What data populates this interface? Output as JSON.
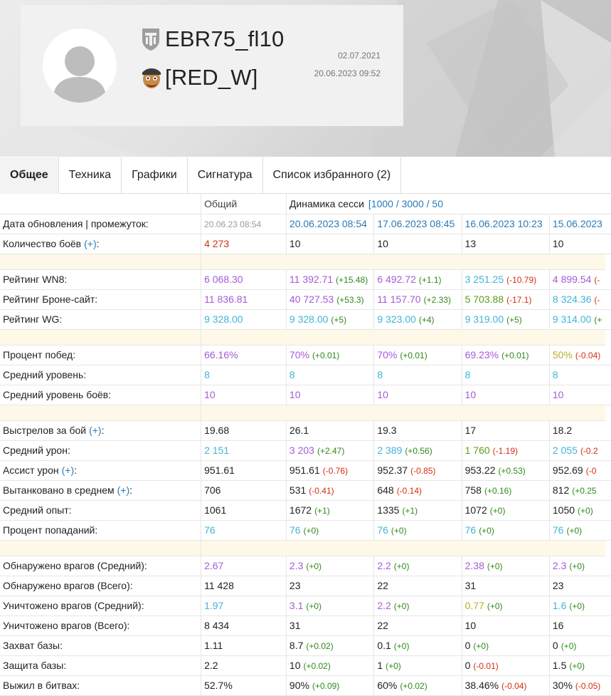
{
  "profile": {
    "nickname": "EBR75_fl10",
    "clan": "[RED_W]",
    "date_created": "02.07.2021",
    "date_updated": "20.06.2023 09:52"
  },
  "tabs": [
    {
      "label": "Общее",
      "active": true
    },
    {
      "label": "Техника"
    },
    {
      "label": "Графики"
    },
    {
      "label": "Сигнатура"
    },
    {
      "label": "Список избранного (2)"
    }
  ],
  "header": {
    "overall": "Общий",
    "session": "Динамика сесси",
    "session_links": "[1000 / 3000 / 50"
  },
  "rows": [
    {
      "label": "Дата обновления | промежуток:",
      "cells": [
        {
          "v": "20.06.23 08:54",
          "c": "gray"
        },
        {
          "v": "20.06.2023 08:54",
          "c": "blue"
        },
        {
          "v": "17.06.2023 08:45",
          "c": "blue"
        },
        {
          "v": "16.06.2023 10:23",
          "c": "blue"
        },
        {
          "v": "15.06.2023",
          "c": "blue"
        }
      ]
    },
    {
      "label": "Количество боёв",
      "plus": "(+)",
      "after": ":",
      "cells": [
        {
          "v": "4 273",
          "c": "red"
        },
        {
          "v": "10",
          "c": "black"
        },
        {
          "v": "10",
          "c": "black"
        },
        {
          "v": "13",
          "c": "black"
        },
        {
          "v": "10",
          "c": "black"
        }
      ]
    },
    {
      "sep": true
    },
    {
      "label": "Рейтинг WN8:",
      "cells": [
        {
          "v": "6 068.30",
          "c": "purple"
        },
        {
          "v": "11 392.71",
          "c": "purple",
          "d": "(+15.48)",
          "dc": "dpos"
        },
        {
          "v": "6 492.72",
          "c": "purple",
          "d": "(+1.1)",
          "dc": "dpos"
        },
        {
          "v": "3 251.25",
          "c": "cyan",
          "d": "(-10.79)",
          "dc": "dneg"
        },
        {
          "v": "4 899.54",
          "c": "purple",
          "d": "(-",
          "dc": "dneg"
        }
      ]
    },
    {
      "label": "Рейтинг Броне-сайт:",
      "cells": [
        {
          "v": "11 836.81",
          "c": "purple"
        },
        {
          "v": "40 727.53",
          "c": "purple",
          "d": "(+53.3)",
          "dc": "dpos"
        },
        {
          "v": "11 157.70",
          "c": "purple",
          "d": "(+2.33)",
          "dc": "dpos"
        },
        {
          "v": "5 703.88",
          "c": "green",
          "d": "(-17.1)",
          "dc": "dneg"
        },
        {
          "v": "8 324.36",
          "c": "cyan",
          "d": "(-",
          "dc": "dneg"
        }
      ]
    },
    {
      "label": "Рейтинг WG:",
      "cells": [
        {
          "v": "9 328.00",
          "c": "cyan"
        },
        {
          "v": "9 328.00",
          "c": "cyan",
          "d": "(+5)",
          "dc": "dpos"
        },
        {
          "v": "9 323.00",
          "c": "cyan",
          "d": "(+4)",
          "dc": "dpos"
        },
        {
          "v": "9 319.00",
          "c": "cyan",
          "d": "(+5)",
          "dc": "dpos"
        },
        {
          "v": "9 314.00",
          "c": "cyan",
          "d": "(+",
          "dc": "dpos"
        }
      ]
    },
    {
      "sep": true
    },
    {
      "label": "Процент побед:",
      "cells": [
        {
          "v": "66.16%",
          "c": "purple"
        },
        {
          "v": "70%",
          "c": "purple",
          "d": "(+0.01)",
          "dc": "dpos"
        },
        {
          "v": "70%",
          "c": "purple",
          "d": "(+0.01)",
          "dc": "dpos"
        },
        {
          "v": "69.23%",
          "c": "purple",
          "d": "(+0.01)",
          "dc": "dpos"
        },
        {
          "v": "50%",
          "c": "yellow",
          "d": "(-0.04)",
          "dc": "dneg"
        }
      ]
    },
    {
      "label": "Средний уровень:",
      "cells": [
        {
          "v": "8",
          "c": "cyan"
        },
        {
          "v": "8",
          "c": "cyan"
        },
        {
          "v": "8",
          "c": "cyan"
        },
        {
          "v": "8",
          "c": "cyan"
        },
        {
          "v": "8",
          "c": "cyan"
        }
      ]
    },
    {
      "label": "Средний уровень боёв:",
      "cells": [
        {
          "v": "10",
          "c": "purple"
        },
        {
          "v": "10",
          "c": "purple"
        },
        {
          "v": "10",
          "c": "purple"
        },
        {
          "v": "10",
          "c": "purple"
        },
        {
          "v": "10",
          "c": "purple"
        }
      ]
    },
    {
      "sep": true
    },
    {
      "label": "Выстрелов за бой",
      "plus": "(+)",
      "after": ":",
      "cells": [
        {
          "v": "19.68",
          "c": "black"
        },
        {
          "v": "26.1",
          "c": "black"
        },
        {
          "v": "19.3",
          "c": "black"
        },
        {
          "v": "17",
          "c": "black"
        },
        {
          "v": "18.2",
          "c": "black"
        }
      ]
    },
    {
      "label": "Средний урон:",
      "cells": [
        {
          "v": "2 151",
          "c": "cyan"
        },
        {
          "v": "3 203",
          "c": "purple",
          "d": "(+2.47)",
          "dc": "dpos"
        },
        {
          "v": "2 389",
          "c": "cyan",
          "d": "(+0.56)",
          "dc": "dpos"
        },
        {
          "v": "1 760",
          "c": "green",
          "d": "(-1.19)",
          "dc": "dneg"
        },
        {
          "v": "2 055",
          "c": "cyan",
          "d": "(-0.2",
          "dc": "dneg"
        }
      ]
    },
    {
      "label": "Ассист урон",
      "plus": "(+)",
      "after": ":",
      "cells": [
        {
          "v": "951.61",
          "c": "black"
        },
        {
          "v": "951.61",
          "c": "black",
          "d": "(-0.76)",
          "dc": "dneg"
        },
        {
          "v": "952.37",
          "c": "black",
          "d": "(-0.85)",
          "dc": "dneg"
        },
        {
          "v": "953.22",
          "c": "black",
          "d": "(+0.53)",
          "dc": "dpos"
        },
        {
          "v": "952.69",
          "c": "black",
          "d": "(-0",
          "dc": "dneg"
        }
      ]
    },
    {
      "label": "Вытанковано в среднем",
      "plus": "(+)",
      "after": ":",
      "cells": [
        {
          "v": "706",
          "c": "black"
        },
        {
          "v": "531",
          "c": "black",
          "d": "(-0.41)",
          "dc": "dneg"
        },
        {
          "v": "648",
          "c": "black",
          "d": "(-0.14)",
          "dc": "dneg"
        },
        {
          "v": "758",
          "c": "black",
          "d": "(+0.16)",
          "dc": "dpos"
        },
        {
          "v": "812",
          "c": "black",
          "d": "(+0.25",
          "dc": "dpos"
        }
      ]
    },
    {
      "label": "Средний опыт:",
      "cells": [
        {
          "v": "1061",
          "c": "black"
        },
        {
          "v": "1672",
          "c": "black",
          "d": "(+1)",
          "dc": "dpos"
        },
        {
          "v": "1335",
          "c": "black",
          "d": "(+1)",
          "dc": "dpos"
        },
        {
          "v": "1072",
          "c": "black",
          "d": "(+0)",
          "dc": "dpos"
        },
        {
          "v": "1050",
          "c": "black",
          "d": "(+0)",
          "dc": "dpos"
        }
      ]
    },
    {
      "label": "Процент попаданий:",
      "cells": [
        {
          "v": "76",
          "c": "cyan"
        },
        {
          "v": "76",
          "c": "cyan",
          "d": "(+0)",
          "dc": "dpos"
        },
        {
          "v": "76",
          "c": "cyan",
          "d": "(+0)",
          "dc": "dpos"
        },
        {
          "v": "76",
          "c": "cyan",
          "d": "(+0)",
          "dc": "dpos"
        },
        {
          "v": "76",
          "c": "cyan",
          "d": "(+0)",
          "dc": "dpos"
        }
      ]
    },
    {
      "sep": true
    },
    {
      "label": "Обнаружено врагов (Средний):",
      "cells": [
        {
          "v": "2.67",
          "c": "purple"
        },
        {
          "v": "2.3",
          "c": "purple",
          "d": "(+0)",
          "dc": "dpos"
        },
        {
          "v": "2.2",
          "c": "purple",
          "d": "(+0)",
          "dc": "dpos"
        },
        {
          "v": "2.38",
          "c": "purple",
          "d": "(+0)",
          "dc": "dpos"
        },
        {
          "v": "2.3",
          "c": "purple",
          "d": "(+0)",
          "dc": "dpos"
        }
      ]
    },
    {
      "label": "Обнаружено врагов (Всего):",
      "cells": [
        {
          "v": "11 428",
          "c": "black"
        },
        {
          "v": "23",
          "c": "black"
        },
        {
          "v": "22",
          "c": "black"
        },
        {
          "v": "31",
          "c": "black"
        },
        {
          "v": "23",
          "c": "black"
        }
      ]
    },
    {
      "label": "Уничтожено врагов (Средний):",
      "cells": [
        {
          "v": "1.97",
          "c": "cyan"
        },
        {
          "v": "3.1",
          "c": "purple",
          "d": "(+0)",
          "dc": "dpos"
        },
        {
          "v": "2.2",
          "c": "purple",
          "d": "(+0)",
          "dc": "dpos"
        },
        {
          "v": "0.77",
          "c": "yellow",
          "d": "(+0)",
          "dc": "dpos"
        },
        {
          "v": "1.6",
          "c": "cyan",
          "d": "(+0)",
          "dc": "dpos"
        }
      ]
    },
    {
      "label": "Уничтожено врагов (Всего):",
      "cells": [
        {
          "v": "8 434",
          "c": "black"
        },
        {
          "v": "31",
          "c": "black"
        },
        {
          "v": "22",
          "c": "black"
        },
        {
          "v": "10",
          "c": "black"
        },
        {
          "v": "16",
          "c": "black"
        }
      ]
    },
    {
      "label": "Захват базы:",
      "cells": [
        {
          "v": "1.11",
          "c": "black"
        },
        {
          "v": "8.7",
          "c": "black",
          "d": "(+0.02)",
          "dc": "dpos"
        },
        {
          "v": "0.1",
          "c": "black",
          "d": "(+0)",
          "dc": "dpos"
        },
        {
          "v": "0",
          "c": "black",
          "d": "(+0)",
          "dc": "dpos"
        },
        {
          "v": "0",
          "c": "black",
          "d": "(+0)",
          "dc": "dpos"
        }
      ]
    },
    {
      "label": "Защита базы:",
      "cells": [
        {
          "v": "2.2",
          "c": "black"
        },
        {
          "v": "10",
          "c": "black",
          "d": "(+0.02)",
          "dc": "dpos"
        },
        {
          "v": "1",
          "c": "black",
          "d": "(+0)",
          "dc": "dpos"
        },
        {
          "v": "0",
          "c": "black",
          "d": "(-0.01)",
          "dc": "dneg"
        },
        {
          "v": "1.5",
          "c": "black",
          "d": "(+0)",
          "dc": "dpos"
        }
      ]
    },
    {
      "label": "Выжил в битвах:",
      "cells": [
        {
          "v": "52.7%",
          "c": "black"
        },
        {
          "v": "90%",
          "c": "black",
          "d": "(+0.09)",
          "dc": "dpos"
        },
        {
          "v": "60%",
          "c": "black",
          "d": "(+0.02)",
          "dc": "dpos"
        },
        {
          "v": "38.46%",
          "c": "black",
          "d": "(-0.04)",
          "dc": "dneg"
        },
        {
          "v": "30%",
          "c": "black",
          "d": "(-0.05)",
          "dc": "dneg"
        }
      ]
    }
  ]
}
